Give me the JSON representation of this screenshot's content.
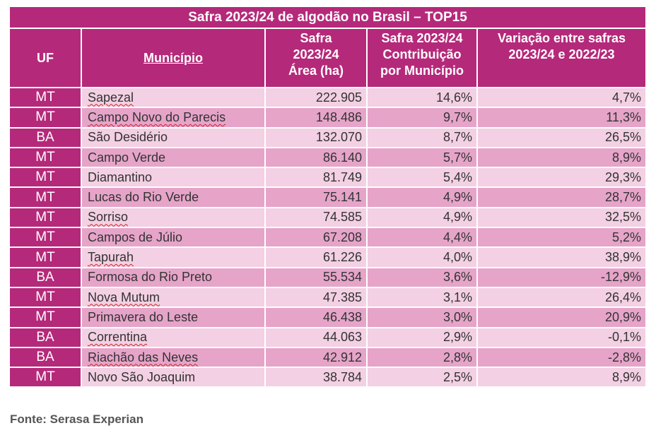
{
  "title": "Safra 2023/24 de algodão no Brasil – TOP15",
  "headers": {
    "uf": "UF",
    "municipio": "Município",
    "area": [
      "Safra",
      "2023/24",
      "Área (ha)"
    ],
    "contrib": [
      "Safra 2023/24",
      "Contribuição",
      "por Município"
    ],
    "variacao": [
      "Variação entre safras",
      "2023/24 e 2022/23"
    ]
  },
  "rows": [
    {
      "uf": "MT",
      "municipio": "Sapezal",
      "area": "222.905",
      "contrib": "14,6%",
      "variacao": "4,7%"
    },
    {
      "uf": "MT",
      "municipio": "Campo Novo do Parecis",
      "area": "148.486",
      "contrib": "9,7%",
      "variacao": "11,3%"
    },
    {
      "uf": "BA",
      "municipio": "São Desidério",
      "area": "132.070",
      "contrib": "8,7%",
      "variacao": "26,5%"
    },
    {
      "uf": "MT",
      "municipio": "Campo Verde",
      "area": "86.140",
      "contrib": "5,7%",
      "variacao": "8,9%"
    },
    {
      "uf": "MT",
      "municipio": "Diamantino",
      "area": "81.749",
      "contrib": "5,4%",
      "variacao": "29,3%"
    },
    {
      "uf": "MT",
      "municipio": "Lucas do Rio Verde",
      "area": "75.141",
      "contrib": "4,9%",
      "variacao": "28,7%"
    },
    {
      "uf": "MT",
      "municipio": "Sorriso",
      "area": "74.585",
      "contrib": "4,9%",
      "variacao": "32,5%"
    },
    {
      "uf": "MT",
      "municipio": "Campos de Júlio",
      "area": "67.208",
      "contrib": "4,4%",
      "variacao": "5,2%"
    },
    {
      "uf": "MT",
      "municipio": "Tapurah",
      "area": "61.226",
      "contrib": "4,0%",
      "variacao": "38,9%"
    },
    {
      "uf": "BA",
      "municipio": "Formosa do Rio Preto",
      "area": "55.534",
      "contrib": "3,6%",
      "variacao": "-12,9%"
    },
    {
      "uf": "MT",
      "municipio": "Nova Mutum",
      "area": "47.385",
      "contrib": "3,1%",
      "variacao": "26,4%"
    },
    {
      "uf": "MT",
      "municipio": "Primavera do Leste",
      "area": "46.438",
      "contrib": "3,0%",
      "variacao": "20,9%"
    },
    {
      "uf": "BA",
      "municipio": "Correntina",
      "area": "44.063",
      "contrib": "2,9%",
      "variacao": "-0,1%"
    },
    {
      "uf": "BA",
      "municipio": "Riachão das Neves",
      "area": "42.912",
      "contrib": "2,8%",
      "variacao": "-2,8%"
    },
    {
      "uf": "MT",
      "municipio": "Novo São Joaquim",
      "area": "38.784",
      "contrib": "2,5%",
      "variacao": "8,9%"
    }
  ],
  "source": "Fonte: Serasa Experian",
  "colors": {
    "header": "#b5297a",
    "row_light": "#f3d0e3",
    "row_dark": "#e6a4c9"
  }
}
